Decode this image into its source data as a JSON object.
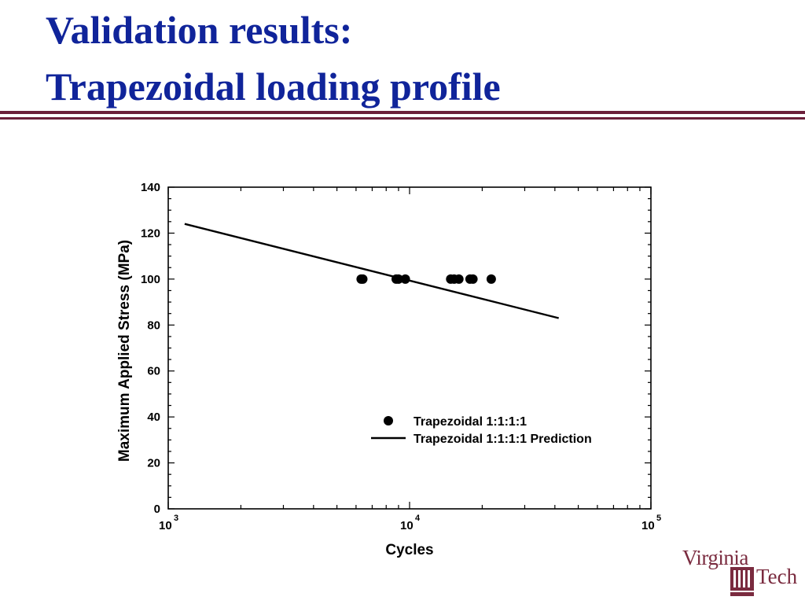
{
  "slide": {
    "title_line1": "Validation results:",
    "title_line2": "Trapezoidal loading profile",
    "logo_text_top": "Virginia",
    "logo_text_bottom": "Tech",
    "colors": {
      "title": "#10249a",
      "rule": "#6b1f3a",
      "logo": "#7a2b3f"
    }
  },
  "chart_data": {
    "type": "scatter",
    "title": "",
    "xlabel": "Cycles",
    "ylabel": "Maximum Applied Stress (MPa)",
    "xscale": "log",
    "xlim": [
      1000,
      100000
    ],
    "ylim": [
      0,
      140
    ],
    "y_ticks": [
      0,
      20,
      40,
      60,
      80,
      100,
      120,
      140
    ],
    "x_ticks": [
      {
        "value": 1000,
        "base": "10",
        "exp": "3"
      },
      {
        "value": 10000,
        "base": "10",
        "exp": "4"
      },
      {
        "value": 100000,
        "base": "10",
        "exp": "5"
      }
    ],
    "grid": false,
    "legend_position": "bottom-right",
    "series": [
      {
        "name": "Trapezoidal 1:1:1:1",
        "kind": "points",
        "points": [
          {
            "x": 6300,
            "y": 100
          },
          {
            "x": 6400,
            "y": 100
          },
          {
            "x": 8800,
            "y": 100
          },
          {
            "x": 9000,
            "y": 100
          },
          {
            "x": 9600,
            "y": 100
          },
          {
            "x": 14800,
            "y": 100
          },
          {
            "x": 15300,
            "y": 100
          },
          {
            "x": 16000,
            "y": 100
          },
          {
            "x": 17800,
            "y": 100
          },
          {
            "x": 18300,
            "y": 100
          },
          {
            "x": 21800,
            "y": 100
          }
        ]
      },
      {
        "name": "Trapezoidal 1:1:1:1 Prediction",
        "kind": "line",
        "points": [
          {
            "x": 1170,
            "y": 124
          },
          {
            "x": 41500,
            "y": 83
          }
        ]
      }
    ]
  }
}
